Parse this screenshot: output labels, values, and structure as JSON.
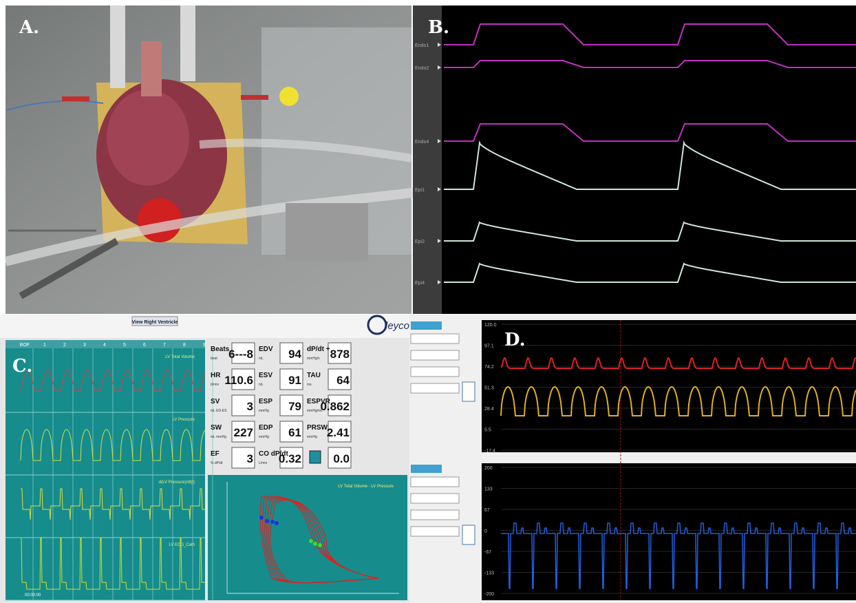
{
  "panels": {
    "a": "A.",
    "b": "B.",
    "c": "C.",
    "d": "D."
  },
  "b_channels": [
    "Endo1",
    "Endo2",
    "Endo4",
    "Epi1",
    "Epi2",
    "Epi4"
  ],
  "c": {
    "toolbar_button": "View Right Ventricle",
    "logo": "leycom",
    "tabs": [
      "BOF",
      "1",
      "2",
      "3",
      "4",
      "5",
      "6",
      "7",
      "8",
      "9"
    ],
    "traces": [
      "LV Total Volume",
      "LV Pressure",
      "d(LV Pressure)/dt(t)",
      "LV ECG_Cath"
    ],
    "time": "00:00:00",
    "loop_title": "LV Total Volume - LV Pressure",
    "params": [
      [
        {
          "name": "Beats",
          "unit": "beat",
          "value": "6---8"
        },
        {
          "name": "EDV",
          "unit": "mL",
          "value": 94
        },
        {
          "name": "dP/dt +",
          "unit": "mmHg/s",
          "value": 878
        }
      ],
      [
        {
          "name": "HR",
          "unit": "b/min",
          "value": 110.6
        },
        {
          "name": "ESV",
          "unit": "mL",
          "value": 91
        },
        {
          "name": "TAU",
          "unit": "ms",
          "value": 64
        }
      ],
      [
        {
          "name": "SV",
          "unit": "mL ED-ES",
          "value": 3
        },
        {
          "name": "ESP",
          "unit": "mmHg",
          "value": 79
        },
        {
          "name": "ESPVR",
          "unit": "mmHg/mL",
          "value": 0.862
        }
      ],
      [
        {
          "name": "SW",
          "unit": "mL mmHg",
          "value": 227
        },
        {
          "name": "EDP",
          "unit": "mmHg",
          "value": 61
        },
        {
          "name": "PRSW",
          "unit": "mmHg",
          "value": 2.41
        }
      ],
      [
        {
          "name": "EF",
          "unit": "% dP/dt",
          "value": 3
        },
        {
          "name": "CO dP/dt",
          "unit": "L/min",
          "value": 0.32
        },
        {
          "value": "0.0"
        }
      ]
    ]
  },
  "d": {
    "upper_ticks": [
      "120.0",
      97.1,
      74.2,
      51.3,
      28.4,
      5.5,
      -17.4
    ],
    "lower_ticks": [
      200,
      133,
      67,
      0,
      -67,
      -133,
      -200
    ]
  }
}
